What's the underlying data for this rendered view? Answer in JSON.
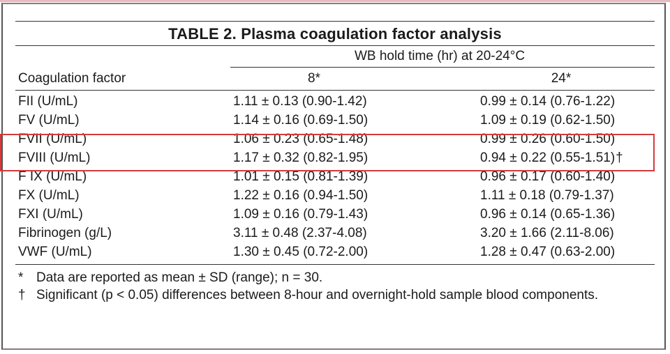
{
  "table": {
    "title": "TABLE 2. Plasma coagulation factor analysis",
    "spanning_header": "WB hold time (hr) at 20-24°C",
    "columns": [
      "Coagulation factor",
      "8*",
      "24*"
    ],
    "rows": [
      {
        "factor": "FII (U/mL)",
        "h8": "1.11 ± 0.13 (0.90-1.42)",
        "h24": "0.99 ± 0.14 (0.76-1.22)",
        "mark": ""
      },
      {
        "factor": "FV (U/mL)",
        "h8": "1.14 ± 0.16 (0.69-1.50)",
        "h24": "1.09 ± 0.19 (0.62-1.50)",
        "mark": ""
      },
      {
        "factor": "FVII (U/mL)",
        "h8": "1.06 ± 0.23 (0.65-1.48)",
        "h24": "0.99 ± 0.26 (0.60-1.50)",
        "mark": ""
      },
      {
        "factor": "FVIII (U/mL)",
        "h8": "1.17 ± 0.32 (0.82-1.95)",
        "h24": "0.94 ± 0.22 (0.55-1.51)",
        "mark": "†"
      },
      {
        "factor": "F IX (U/mL)",
        "h8": "1.01 ± 0.15 (0.81-1.39)",
        "h24": "0.96 ± 0.17 (0.60-1.40)",
        "mark": ""
      },
      {
        "factor": "FX (U/mL)",
        "h8": "1.22 ± 0.16 (0.94-1.50)",
        "h24": "1.11 ± 0.18 (0.79-1.37)",
        "mark": ""
      },
      {
        "factor": "FXI (U/mL)",
        "h8": "1.09 ± 0.16 (0.79-1.43)",
        "h24": "0.96 ± 0.14 (0.65-1.36)",
        "mark": ""
      },
      {
        "factor": "Fibrinogen (g/L)",
        "h8": "3.11 ± 0.48 (2.37-4.08)",
        "h24": "3.20 ± 1.66 (2.11-8.06)",
        "mark": ""
      },
      {
        "factor": "VWF (U/mL)",
        "h8": "1.30 ± 0.45 (0.72-2.00)",
        "h24": "1.28 ± 0.47 (0.63-2.00)",
        "mark": ""
      }
    ],
    "footnotes": [
      {
        "symbol": "*",
        "text": "Data are reported as mean ± SD (range); n = 30."
      },
      {
        "symbol": "†",
        "text": "Significant (p < 0.05) differences between 8-hour and overnight-hold sample blood components."
      }
    ]
  },
  "colors": {
    "highlight_box": "#d43a3a",
    "rule": "#333333",
    "frame": "#555555"
  }
}
